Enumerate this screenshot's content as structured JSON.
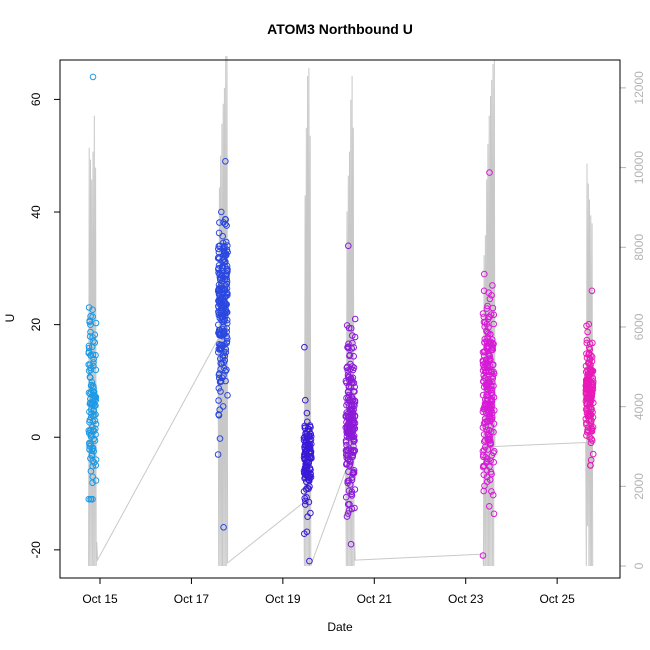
{
  "chart_data": {
    "type": "scatter",
    "title": "ATOM3 Northbound U",
    "xlabel": "Date",
    "ylabel": "U",
    "x_ticks": [
      "Oct 15",
      "Oct 17",
      "Oct 19",
      "Oct 21",
      "Oct 23",
      "Oct 25"
    ],
    "y_ticks": [
      -20,
      0,
      20,
      40,
      60
    ],
    "ylim": [
      -25,
      67
    ],
    "xlim": [
      "2013-10-14T03:00",
      "2013-10-26T09:00"
    ],
    "secondary_axis": {
      "ticks": [
        0,
        2000,
        4000,
        6000,
        8000,
        10000,
        12000
      ],
      "ylim": [
        -300,
        12700
      ],
      "color": "#b3b3b3"
    },
    "grid": false,
    "line_series": {
      "color": "#c8c8c8",
      "points": [
        [
          "2013-10-14T18:00",
          0
        ],
        [
          "2013-10-14T18:20",
          10500
        ],
        [
          "2013-10-14T18:40",
          0
        ],
        [
          "2013-10-14T19:00",
          10200
        ],
        [
          "2013-10-14T19:20",
          0
        ],
        [
          "2013-10-14T19:40",
          9700
        ],
        [
          "2013-10-14T20:00",
          0
        ],
        [
          "2013-10-14T20:20",
          10400
        ],
        [
          "2013-10-14T20:40",
          0
        ],
        [
          "2013-10-14T21:00",
          11300
        ],
        [
          "2013-10-14T21:20",
          0
        ],
        [
          "2013-10-14T21:40",
          10000
        ],
        [
          "2013-10-14T22:00",
          0
        ],
        [
          "2013-10-14T22:20",
          600
        ],
        [
          "2013-10-14T22:40",
          150
        ],
        [
          "2013-10-17T14:00",
          5700
        ],
        [
          "2013-10-17T14:20",
          0
        ],
        [
          "2013-10-17T14:40",
          9500
        ],
        [
          "2013-10-17T15:00",
          0
        ],
        [
          "2013-10-17T15:20",
          10300
        ],
        [
          "2013-10-17T15:40",
          0
        ],
        [
          "2013-10-17T16:00",
          11100
        ],
        [
          "2013-10-17T16:20",
          0
        ],
        [
          "2013-10-17T16:40",
          11600
        ],
        [
          "2013-10-17T17:00",
          0
        ],
        [
          "2013-10-17T17:20",
          12000
        ],
        [
          "2013-10-17T17:40",
          0
        ],
        [
          "2013-10-17T18:00",
          12800
        ],
        [
          "2013-10-17T18:20",
          0
        ],
        [
          "2013-10-17T18:40",
          12800
        ],
        [
          "2013-10-17T19:00",
          80
        ],
        [
          "2013-10-19T11:00",
          1600
        ],
        [
          "2013-10-19T11:20",
          0
        ],
        [
          "2013-10-19T11:40",
          9300
        ],
        [
          "2013-10-19T12:00",
          0
        ],
        [
          "2013-10-19T12:20",
          11000
        ],
        [
          "2013-10-19T12:40",
          0
        ],
        [
          "2013-10-19T13:00",
          12300
        ],
        [
          "2013-10-19T13:20",
          0
        ],
        [
          "2013-10-19T13:40",
          12500
        ],
        [
          "2013-10-19T14:00",
          0
        ],
        [
          "2013-10-19T14:20",
          10800
        ],
        [
          "2013-10-19T14:40",
          0
        ],
        [
          "2013-10-19T15:00",
          60
        ],
        [
          "2013-10-20T09:00",
          2400
        ],
        [
          "2013-10-20T09:20",
          0
        ],
        [
          "2013-10-20T09:40",
          8900
        ],
        [
          "2013-10-20T10:00",
          0
        ],
        [
          "2013-10-20T10:20",
          9800
        ],
        [
          "2013-10-20T10:40",
          0
        ],
        [
          "2013-10-20T11:00",
          10400
        ],
        [
          "2013-10-20T11:20",
          0
        ],
        [
          "2013-10-20T11:40",
          11700
        ],
        [
          "2013-10-20T12:00",
          0
        ],
        [
          "2013-10-20T12:20",
          12300
        ],
        [
          "2013-10-20T12:40",
          0
        ],
        [
          "2013-10-20T13:00",
          11000
        ],
        [
          "2013-10-20T13:20",
          0
        ],
        [
          "2013-10-20T13:40",
          600
        ],
        [
          "2013-10-20T14:00",
          150
        ],
        [
          "2013-10-23T09:00",
          300
        ],
        [
          "2013-10-23T09:20",
          0
        ],
        [
          "2013-10-23T09:40",
          7800
        ],
        [
          "2013-10-23T10:00",
          0
        ],
        [
          "2013-10-23T10:20",
          8300
        ],
        [
          "2013-10-23T10:40",
          0
        ],
        [
          "2013-10-23T11:00",
          9700
        ],
        [
          "2013-10-23T11:20",
          0
        ],
        [
          "2013-10-23T11:40",
          10600
        ],
        [
          "2013-10-23T12:00",
          0
        ],
        [
          "2013-10-23T12:20",
          11300
        ],
        [
          "2013-10-23T12:40",
          0
        ],
        [
          "2013-10-23T13:00",
          11800
        ],
        [
          "2013-10-23T13:20",
          0
        ],
        [
          "2013-10-23T13:40",
          12200
        ],
        [
          "2013-10-23T14:00",
          0
        ],
        [
          "2013-10-23T14:20",
          12600
        ],
        [
          "2013-10-23T14:40",
          0
        ],
        [
          "2013-10-23T15:00",
          12700
        ],
        [
          "2013-10-23T15:20",
          3000
        ],
        [
          "2013-10-25T15:00",
          3100
        ],
        [
          "2013-10-25T15:20",
          0
        ],
        [
          "2013-10-25T15:40",
          10100
        ],
        [
          "2013-10-25T16:00",
          1000
        ],
        [
          "2013-10-25T16:20",
          9600
        ],
        [
          "2013-10-25T16:40",
          0
        ],
        [
          "2013-10-25T17:00",
          9200
        ],
        [
          "2013-10-25T17:20",
          0
        ],
        [
          "2013-10-25T17:40",
          8800
        ],
        [
          "2013-10-25T18:00",
          0
        ],
        [
          "2013-10-25T18:20",
          8600
        ],
        [
          "2013-10-25T18:40",
          0
        ]
      ]
    },
    "point_groups": [
      {
        "start": "2013-10-14T18:00",
        "end": "2013-10-14T22:00",
        "center": 5,
        "spread": 14,
        "high": 64,
        "low": -11,
        "count": 120,
        "color": "#1c9ae6"
      },
      {
        "start": "2013-10-17T14:00",
        "end": "2013-10-17T19:00",
        "center": 22,
        "spread": 14,
        "high": 49,
        "low": -16,
        "count": 220,
        "color": "#2a48e0"
      },
      {
        "start": "2013-10-19T11:00",
        "end": "2013-10-19T15:00",
        "center": -4,
        "spread": 7,
        "high": 16,
        "low": -22,
        "count": 130,
        "color": "#3a1ad8"
      },
      {
        "start": "2013-10-20T09:00",
        "end": "2013-10-20T14:00",
        "center": 3,
        "spread": 12,
        "high": 34,
        "low": -19,
        "count": 200,
        "color": "#8c1ad8"
      },
      {
        "start": "2013-10-23T09:00",
        "end": "2013-10-23T15:00",
        "center": 8,
        "spread": 14,
        "high": 47,
        "low": -21,
        "count": 230,
        "color": "#d81ad8"
      },
      {
        "start": "2013-10-25T15:00",
        "end": "2013-10-25T19:00",
        "center": 8,
        "spread": 8,
        "high": 26,
        "low": -5,
        "count": 160,
        "color": "#e81ab8"
      }
    ]
  }
}
